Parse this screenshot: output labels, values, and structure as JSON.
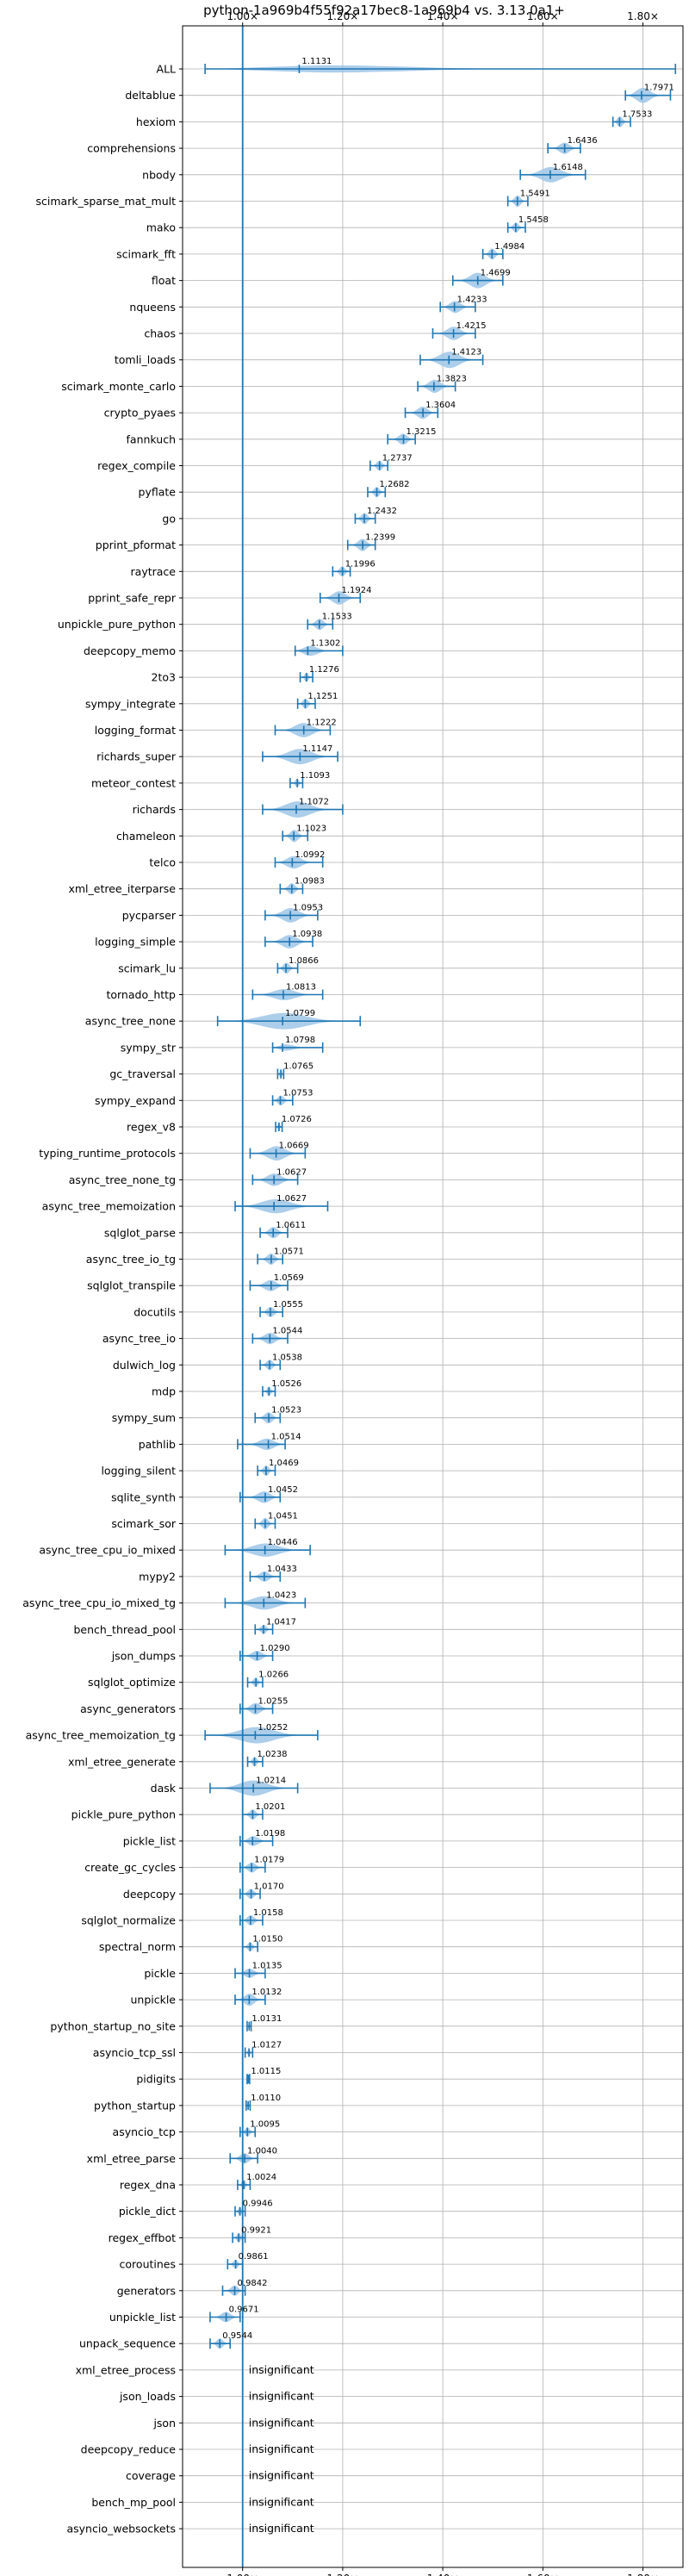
{
  "chart_data": {
    "type": "violin",
    "title": "python-1a969b4f55f92a17bec8-1a969b4 vs. 3.13.0a1+",
    "xlabel": "",
    "ylabel": "",
    "xlim": [
      0.88,
      1.88
    ],
    "x_ticks": [
      1.0,
      1.2,
      1.4,
      1.6,
      1.8
    ],
    "x_tick_labels": [
      "1.00×",
      "1.20×",
      "1.40×",
      "1.60×",
      "1.80×"
    ],
    "grid": true,
    "reference_line": 1.0,
    "colors": {
      "violin": "#9ec5e6",
      "whisker": "#1f77b4",
      "reference": "#1f77b4",
      "grid": "#b0b0b0"
    },
    "rows": [
      {
        "name": "ALL",
        "value": 1.1131,
        "label": "1.1131",
        "min": 0.925,
        "max": 1.865,
        "width": 0.5
      },
      {
        "name": "deltablue",
        "value": 1.7971,
        "label": "1.7971",
        "min": 1.765,
        "max": 1.855,
        "width": 0.8
      },
      {
        "name": "hexiom",
        "value": 1.7533,
        "label": "1.7533",
        "min": 1.74,
        "max": 1.775,
        "width": 0.55
      },
      {
        "name": "comprehensions",
        "value": 1.6436,
        "label": "1.6436",
        "min": 1.61,
        "max": 1.675,
        "width": 0.55
      },
      {
        "name": "nbody",
        "value": 1.6148,
        "label": "1.6148",
        "min": 1.555,
        "max": 1.685,
        "width": 0.75
      },
      {
        "name": "scimark_sparse_mat_mult",
        "value": 1.5491,
        "label": "1.5491",
        "min": 1.53,
        "max": 1.57,
        "width": 0.55
      },
      {
        "name": "mako",
        "value": 1.5458,
        "label": "1.5458",
        "min": 1.53,
        "max": 1.565,
        "width": 0.5
      },
      {
        "name": "scimark_fft",
        "value": 1.4984,
        "label": "1.4984",
        "min": 1.48,
        "max": 1.52,
        "width": 0.55
      },
      {
        "name": "float",
        "value": 1.4699,
        "label": "1.4699",
        "min": 1.42,
        "max": 1.52,
        "width": 0.75
      },
      {
        "name": "nqueens",
        "value": 1.4233,
        "label": "1.4233",
        "min": 1.395,
        "max": 1.465,
        "width": 0.6
      },
      {
        "name": "chaos",
        "value": 1.4215,
        "label": "1.4215",
        "min": 1.38,
        "max": 1.465,
        "width": 0.65
      },
      {
        "name": "tomli_loads",
        "value": 1.4123,
        "label": "1.4123",
        "min": 1.355,
        "max": 1.48,
        "width": 0.8
      },
      {
        "name": "scimark_monte_carlo",
        "value": 1.3823,
        "label": "1.3823",
        "min": 1.35,
        "max": 1.425,
        "width": 0.65
      },
      {
        "name": "crypto_pyaes",
        "value": 1.3604,
        "label": "1.3604",
        "min": 1.325,
        "max": 1.39,
        "width": 0.6
      },
      {
        "name": "fannkuch",
        "value": 1.3215,
        "label": "1.3215",
        "min": 1.29,
        "max": 1.345,
        "width": 0.55
      },
      {
        "name": "regex_compile",
        "value": 1.2737,
        "label": "1.2737",
        "min": 1.255,
        "max": 1.29,
        "width": 0.5
      },
      {
        "name": "pyflate",
        "value": 1.2682,
        "label": "1.2682",
        "min": 1.25,
        "max": 1.285,
        "width": 0.5
      },
      {
        "name": "go",
        "value": 1.2432,
        "label": "1.2432",
        "min": 1.225,
        "max": 1.265,
        "width": 0.55
      },
      {
        "name": "pprint_pformat",
        "value": 1.2399,
        "label": "1.2399",
        "min": 1.21,
        "max": 1.265,
        "width": 0.6
      },
      {
        "name": "raytrace",
        "value": 1.1996,
        "label": "1.1996",
        "min": 1.18,
        "max": 1.215,
        "width": 0.5
      },
      {
        "name": "pprint_safe_repr",
        "value": 1.1924,
        "label": "1.1924",
        "min": 1.155,
        "max": 1.235,
        "width": 0.65
      },
      {
        "name": "unpickle_pure_python",
        "value": 1.1533,
        "label": "1.1533",
        "min": 1.13,
        "max": 1.18,
        "width": 0.55
      },
      {
        "name": "deepcopy_memo",
        "value": 1.1302,
        "label": "1.1302",
        "min": 1.105,
        "max": 1.2,
        "width": 0.6
      },
      {
        "name": "2to3",
        "value": 1.1276,
        "label": "1.1276",
        "min": 1.115,
        "max": 1.14,
        "width": 0.45
      },
      {
        "name": "sympy_integrate",
        "value": 1.1251,
        "label": "1.1251",
        "min": 1.11,
        "max": 1.145,
        "width": 0.5
      },
      {
        "name": "logging_format",
        "value": 1.1222,
        "label": "1.1222",
        "min": 1.065,
        "max": 1.175,
        "width": 0.7
      },
      {
        "name": "richards_super",
        "value": 1.1147,
        "label": "1.1147",
        "min": 1.04,
        "max": 1.19,
        "width": 0.75
      },
      {
        "name": "meteor_contest",
        "value": 1.1093,
        "label": "1.1093",
        "min": 1.095,
        "max": 1.12,
        "width": 0.4
      },
      {
        "name": "richards",
        "value": 1.1072,
        "label": "1.1072",
        "min": 1.04,
        "max": 1.2,
        "width": 0.8
      },
      {
        "name": "chameleon",
        "value": 1.1023,
        "label": "1.1023",
        "min": 1.08,
        "max": 1.13,
        "width": 0.6
      },
      {
        "name": "telco",
        "value": 1.0992,
        "label": "1.0992",
        "min": 1.065,
        "max": 1.16,
        "width": 0.65
      },
      {
        "name": "xml_etree_iterparse",
        "value": 1.0983,
        "label": "1.0983",
        "min": 1.075,
        "max": 1.12,
        "width": 0.55
      },
      {
        "name": "pycparser",
        "value": 1.0953,
        "label": "1.0953",
        "min": 1.045,
        "max": 1.15,
        "width": 0.7
      },
      {
        "name": "logging_simple",
        "value": 1.0938,
        "label": "1.0938",
        "min": 1.045,
        "max": 1.14,
        "width": 0.65
      },
      {
        "name": "scimark_lu",
        "value": 1.0866,
        "label": "1.0866",
        "min": 1.07,
        "max": 1.11,
        "width": 0.55
      },
      {
        "name": "tornado_http",
        "value": 1.0813,
        "label": "1.0813",
        "min": 1.02,
        "max": 1.16,
        "width": 0.55
      },
      {
        "name": "async_tree_none",
        "value": 1.0799,
        "label": "1.0799",
        "min": 0.95,
        "max": 1.235,
        "width": 0.8
      },
      {
        "name": "sympy_str",
        "value": 1.0798,
        "label": "1.0798",
        "min": 1.06,
        "max": 1.16,
        "width": 0.45
      },
      {
        "name": "gc_traversal",
        "value": 1.0765,
        "label": "1.0765",
        "min": 1.07,
        "max": 1.082,
        "width": 0.55
      },
      {
        "name": "sympy_expand",
        "value": 1.0753,
        "label": "1.0753",
        "min": 1.06,
        "max": 1.1,
        "width": 0.5
      },
      {
        "name": "regex_v8",
        "value": 1.0726,
        "label": "1.0726",
        "min": 1.066,
        "max": 1.079,
        "width": 0.45
      },
      {
        "name": "typing_runtime_protocols",
        "value": 1.0669,
        "label": "1.0669",
        "min": 1.015,
        "max": 1.125,
        "width": 0.7
      },
      {
        "name": "async_tree_none_tg",
        "value": 1.0627,
        "label": "1.0627",
        "min": 1.02,
        "max": 1.11,
        "width": 0.6
      },
      {
        "name": "async_tree_memoization",
        "value": 1.0627,
        "label": "1.0627",
        "min": 0.985,
        "max": 1.17,
        "width": 0.7
      },
      {
        "name": "sqlglot_parse",
        "value": 1.0611,
        "label": "1.0611",
        "min": 1.035,
        "max": 1.09,
        "width": 0.55
      },
      {
        "name": "async_tree_io_tg",
        "value": 1.0571,
        "label": "1.0571",
        "min": 1.03,
        "max": 1.08,
        "width": 0.55
      },
      {
        "name": "sqlglot_transpile",
        "value": 1.0569,
        "label": "1.0569",
        "min": 1.015,
        "max": 1.09,
        "width": 0.55
      },
      {
        "name": "docutils",
        "value": 1.0555,
        "label": "1.0555",
        "min": 1.035,
        "max": 1.08,
        "width": 0.5
      },
      {
        "name": "async_tree_io",
        "value": 1.0544,
        "label": "1.0544",
        "min": 1.02,
        "max": 1.09,
        "width": 0.55
      },
      {
        "name": "dulwich_log",
        "value": 1.0538,
        "label": "1.0538",
        "min": 1.035,
        "max": 1.075,
        "width": 0.5
      },
      {
        "name": "mdp",
        "value": 1.0526,
        "label": "1.0526",
        "min": 1.04,
        "max": 1.065,
        "width": 0.45
      },
      {
        "name": "sympy_sum",
        "value": 1.0523,
        "label": "1.0523",
        "min": 1.025,
        "max": 1.075,
        "width": 0.55
      },
      {
        "name": "pathlib",
        "value": 1.0514,
        "label": "1.0514",
        "min": 0.99,
        "max": 1.085,
        "width": 0.6
      },
      {
        "name": "logging_silent",
        "value": 1.0469,
        "label": "1.0469",
        "min": 1.03,
        "max": 1.065,
        "width": 0.5
      },
      {
        "name": "sqlite_synth",
        "value": 1.0452,
        "label": "1.0452",
        "min": 0.995,
        "max": 1.075,
        "width": 0.6
      },
      {
        "name": "scimark_sor",
        "value": 1.0451,
        "label": "1.0451",
        "min": 1.025,
        "max": 1.065,
        "width": 0.55
      },
      {
        "name": "async_tree_cpu_io_mixed",
        "value": 1.0446,
        "label": "1.0446",
        "min": 0.965,
        "max": 1.135,
        "width": 0.65
      },
      {
        "name": "mypy2",
        "value": 1.0433,
        "label": "1.0433",
        "min": 1.015,
        "max": 1.075,
        "width": 0.5
      },
      {
        "name": "async_tree_cpu_io_mixed_tg",
        "value": 1.0423,
        "label": "1.0423",
        "min": 0.965,
        "max": 1.125,
        "width": 0.65
      },
      {
        "name": "bench_thread_pool",
        "value": 1.0417,
        "label": "1.0417",
        "min": 1.025,
        "max": 1.06,
        "width": 0.45
      },
      {
        "name": "json_dumps",
        "value": 1.029,
        "label": "1.0290",
        "min": 0.995,
        "max": 1.06,
        "width": 0.5
      },
      {
        "name": "sqlglot_optimize",
        "value": 1.0266,
        "label": "1.0266",
        "min": 1.01,
        "max": 1.04,
        "width": 0.45
      },
      {
        "name": "async_generators",
        "value": 1.0255,
        "label": "1.0255",
        "min": 0.995,
        "max": 1.06,
        "width": 0.55
      },
      {
        "name": "async_tree_memoization_tg",
        "value": 1.0252,
        "label": "1.0252",
        "min": 0.925,
        "max": 1.15,
        "width": 0.8
      },
      {
        "name": "xml_etree_generate",
        "value": 1.0238,
        "label": "1.0238",
        "min": 1.01,
        "max": 1.04,
        "width": 0.45
      },
      {
        "name": "dask",
        "value": 1.0214,
        "label": "1.0214",
        "min": 0.935,
        "max": 1.11,
        "width": 0.75
      },
      {
        "name": "pickle_pure_python",
        "value": 1.0201,
        "label": "1.0201",
        "min": 1.0,
        "max": 1.04,
        "width": 0.5
      },
      {
        "name": "pickle_list",
        "value": 1.0198,
        "label": "1.0198",
        "min": 0.995,
        "max": 1.06,
        "width": 0.5
      },
      {
        "name": "create_gc_cycles",
        "value": 1.0179,
        "label": "1.0179",
        "min": 0.995,
        "max": 1.045,
        "width": 0.5
      },
      {
        "name": "deepcopy",
        "value": 1.017,
        "label": "1.0170",
        "min": 0.995,
        "max": 1.035,
        "width": 0.5
      },
      {
        "name": "sqlglot_normalize",
        "value": 1.0158,
        "label": "1.0158",
        "min": 0.995,
        "max": 1.04,
        "width": 0.5
      },
      {
        "name": "spectral_norm",
        "value": 1.015,
        "label": "1.0150",
        "min": 1.0,
        "max": 1.03,
        "width": 0.45
      },
      {
        "name": "pickle",
        "value": 1.0135,
        "label": "1.0135",
        "min": 0.985,
        "max": 1.045,
        "width": 0.45
      },
      {
        "name": "unpickle",
        "value": 1.0132,
        "label": "1.0132",
        "min": 0.985,
        "max": 1.045,
        "width": 0.6
      },
      {
        "name": "python_startup_no_site",
        "value": 1.0131,
        "label": "1.0131",
        "min": 1.009,
        "max": 1.017,
        "width": 0.5
      },
      {
        "name": "asyncio_tcp_ssl",
        "value": 1.0127,
        "label": "1.0127",
        "min": 1.005,
        "max": 1.02,
        "width": 0.4
      },
      {
        "name": "pidigits",
        "value": 1.0115,
        "label": "1.0115",
        "min": 1.009,
        "max": 1.014,
        "width": 0.3
      },
      {
        "name": "python_startup",
        "value": 1.011,
        "label": "1.0110",
        "min": 1.007,
        "max": 1.015,
        "width": 0.45
      },
      {
        "name": "asyncio_tcp",
        "value": 1.0095,
        "label": "1.0095",
        "min": 0.995,
        "max": 1.025,
        "width": 0.45
      },
      {
        "name": "xml_etree_parse",
        "value": 1.004,
        "label": "1.0040",
        "min": 0.975,
        "max": 1.03,
        "width": 0.5
      },
      {
        "name": "regex_dna",
        "value": 1.0024,
        "label": "1.0024",
        "min": 0.99,
        "max": 1.015,
        "width": 0.45
      },
      {
        "name": "pickle_dict",
        "value": 0.9946,
        "label": "0.9946",
        "min": 0.985,
        "max": 1.005,
        "width": 0.45
      },
      {
        "name": "regex_effbot",
        "value": 0.9921,
        "label": "0.9921",
        "min": 0.98,
        "max": 1.005,
        "width": 0.45
      },
      {
        "name": "coroutines",
        "value": 0.9861,
        "label": "0.9861",
        "min": 0.97,
        "max": 1.0,
        "width": 0.45
      },
      {
        "name": "generators",
        "value": 0.9842,
        "label": "0.9842",
        "min": 0.96,
        "max": 1.005,
        "width": 0.5
      },
      {
        "name": "unpickle_list",
        "value": 0.9671,
        "label": "0.9671",
        "min": 0.935,
        "max": 0.995,
        "width": 0.5
      },
      {
        "name": "unpack_sequence",
        "value": 0.9544,
        "label": "0.9544",
        "min": 0.935,
        "max": 0.975,
        "width": 0.5
      },
      {
        "name": "xml_etree_process",
        "insignificant": true,
        "label": "insignificant"
      },
      {
        "name": "json_loads",
        "insignificant": true,
        "label": "insignificant"
      },
      {
        "name": "json",
        "insignificant": true,
        "label": "insignificant"
      },
      {
        "name": "deepcopy_reduce",
        "insignificant": true,
        "label": "insignificant"
      },
      {
        "name": "coverage",
        "insignificant": true,
        "label": "insignificant"
      },
      {
        "name": "bench_mp_pool",
        "insignificant": true,
        "label": "insignificant"
      },
      {
        "name": "asyncio_websockets",
        "insignificant": true,
        "label": "insignificant"
      }
    ]
  }
}
